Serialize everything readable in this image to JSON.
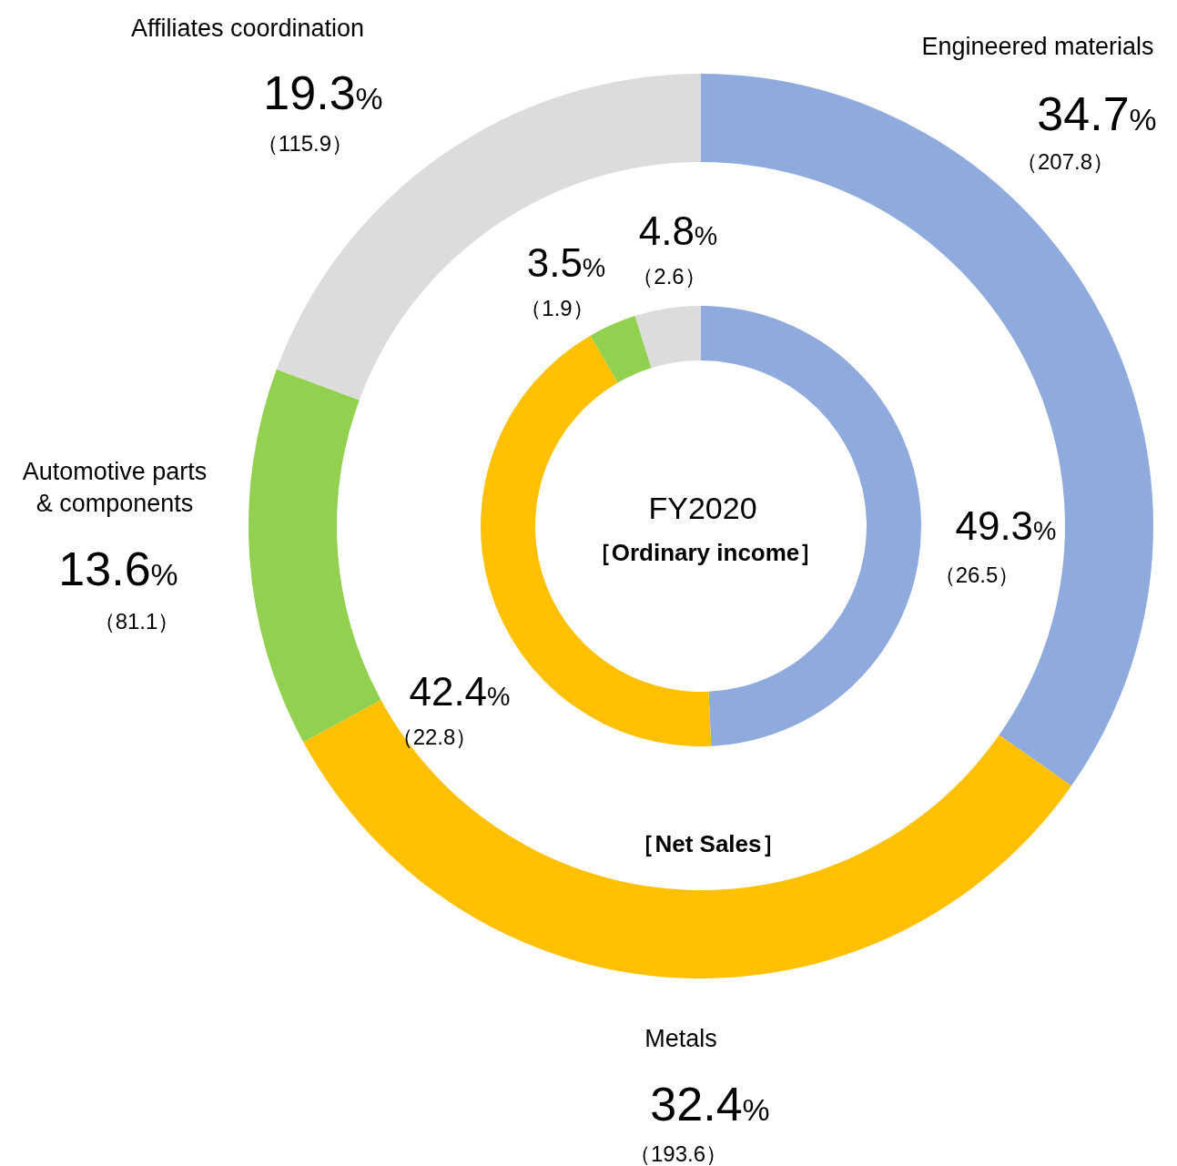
{
  "chart_data": [
    {
      "type": "donut",
      "title": "［Net Sales］",
      "categories": [
        "Engineered materials",
        "Metals",
        "Automotive parts & components",
        "Affiliates coordination"
      ],
      "values": [
        207.8,
        193.6,
        81.1,
        115.9
      ],
      "colors": [
        "#8faadc",
        "#ffc000",
        "#92d050",
        "#dddcdd"
      ],
      "value_labels": [
        "（207.8）",
        "（193.6）",
        "（81.1）",
        "（115.9）"
      ],
      "annotations": [
        "34.7%",
        "32.4%",
        "13.6%",
        "19.3%"
      ]
    },
    {
      "type": "donut",
      "title": "FY2020",
      "subtitle": "［Ordinary income］",
      "categories": [
        null,
        null,
        null,
        null
      ],
      "values": [
        26.5,
        22.8,
        1.9,
        2.6
      ],
      "colors": [
        "#8faadc",
        "#ffc000",
        "#92d050",
        "#dddcdd"
      ],
      "value_labels": [
        "（26.5）",
        "（22.8）",
        "（1.9）",
        "（2.6）"
      ],
      "annotations": [
        "49.3%",
        "42.4%",
        "3.5%",
        "4.8%"
      ]
    }
  ]
}
